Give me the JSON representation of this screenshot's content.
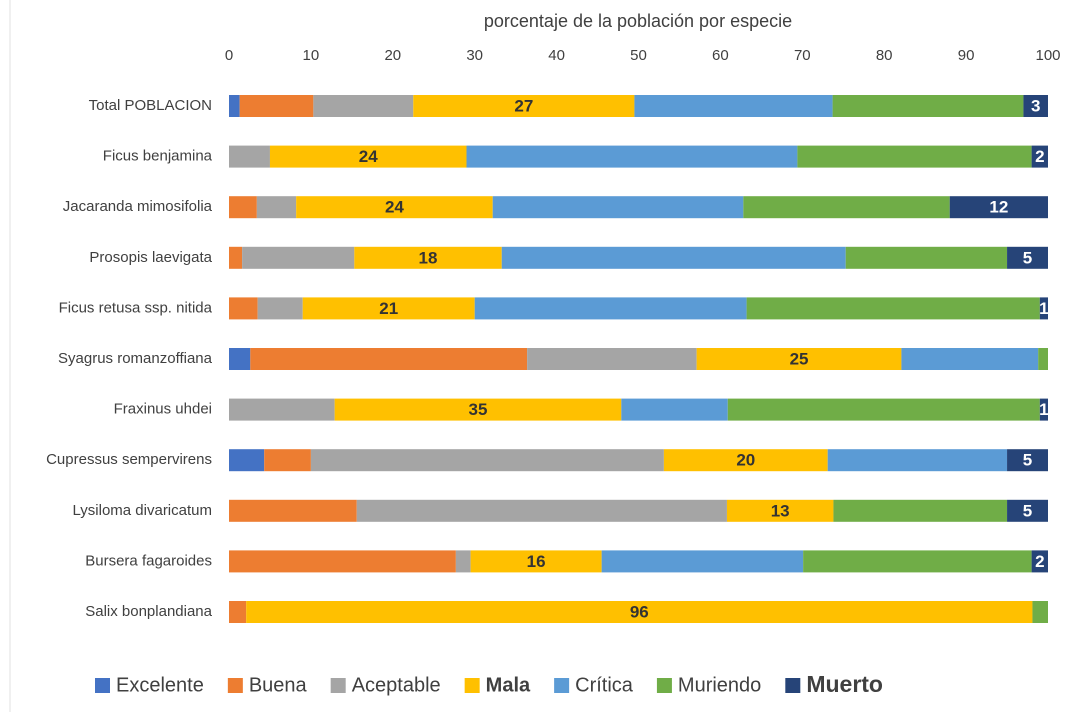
{
  "chart_data": {
    "type": "stacked_barh",
    "xlabel": "porcentaje de la población por especie",
    "categories": [
      "Total POBLACION",
      "Ficus benjamina",
      "Jacaranda mimosifolia",
      "Prosopis laevigata",
      "Ficus retusa ssp. nitida",
      "Syagrus romanzoffiana",
      "Fraxinus uhdei",
      "Cupressus sempervirens",
      "Lysiloma divaricatum",
      "Bursera fagaroides",
      "Salix bonplandiana"
    ],
    "series": [
      {
        "name": "Excelente",
        "color": "#4472c4",
        "values": [
          1.3,
          0,
          0,
          0,
          0,
          2.6,
          0,
          4.3,
          0,
          0,
          0
        ]
      },
      {
        "name": "Buena",
        "color": "#ed7d31",
        "values": [
          9.0,
          0,
          3.4,
          1.6,
          3.5,
          33.8,
          0,
          5.7,
          15.6,
          27.7,
          2.1
        ]
      },
      {
        "name": "Aceptable",
        "color": "#a5a5a5",
        "values": [
          12.2,
          5.0,
          4.8,
          13.7,
          5.5,
          20.7,
          12.9,
          43.1,
          45.2,
          1.8,
          0
        ]
      },
      {
        "name": "Mala",
        "color": "#ffc000",
        "data_labels": true,
        "values": [
          27,
          24,
          24,
          18,
          21,
          25,
          35,
          20,
          13,
          16,
          96
        ]
      },
      {
        "name": "Crítica",
        "color": "#5b9bd5",
        "values": [
          24.2,
          40.4,
          30.6,
          42.0,
          33.2,
          16.7,
          13.0,
          21.9,
          0,
          24.6,
          0
        ]
      },
      {
        "name": "Muriendo",
        "color": "#70ad47",
        "values": [
          23.3,
          28.6,
          25.2,
          19.7,
          35.8,
          1.2,
          38.1,
          0,
          21.2,
          27.9,
          1.9
        ]
      },
      {
        "name": "Muerto",
        "color": "#264478",
        "data_labels": true,
        "values": [
          3,
          2,
          12,
          5,
          1,
          0,
          1,
          5,
          5,
          2,
          0
        ]
      }
    ],
    "xlim": [
      0,
      100
    ],
    "xticks": [
      0,
      10,
      20,
      30,
      40,
      50,
      60,
      70,
      80,
      90,
      100
    ],
    "legend": "bottom",
    "grid": false
  }
}
